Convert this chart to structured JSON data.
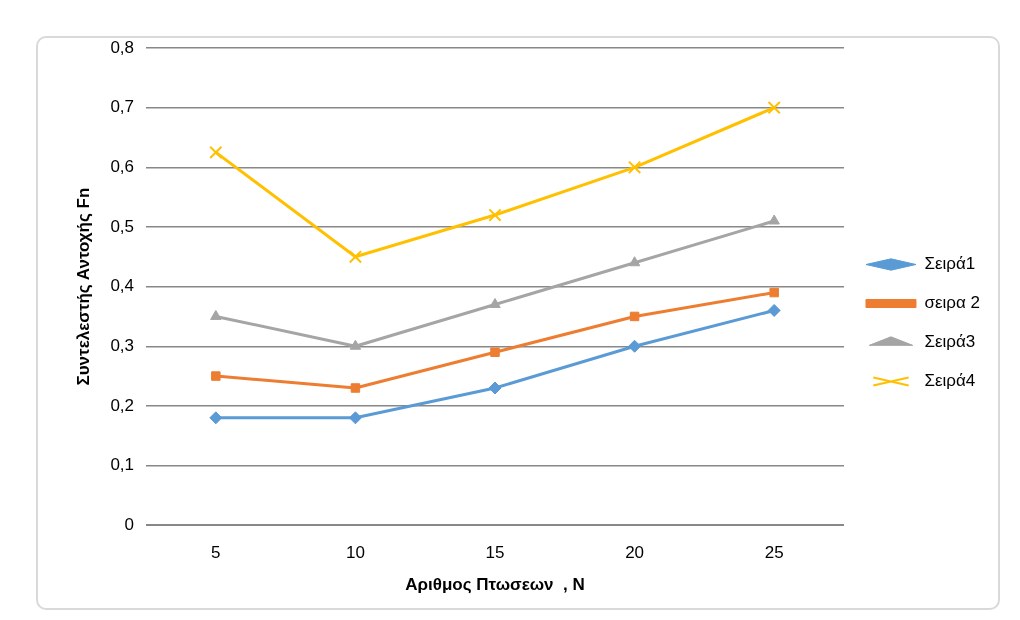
{
  "chart_data": {
    "type": "line",
    "xlabel": "Αριθμος Πτωσεων  , N",
    "ylabel": "Συντελεστής Αντοχής Fn",
    "categories": [
      "5",
      "10",
      "15",
      "20",
      "25"
    ],
    "series": [
      {
        "name": "Σειρά1",
        "color": "#5b9bd5",
        "marker": "diamond",
        "values": [
          0.18,
          0.18,
          0.23,
          0.3,
          0.36
        ]
      },
      {
        "name": "σειρα 2",
        "color": "#ed7d31",
        "marker": "square",
        "values": [
          0.25,
          0.23,
          0.29,
          0.35,
          0.39
        ]
      },
      {
        "name": "Σειρά3",
        "color": "#a5a5a5",
        "marker": "triangle",
        "values": [
          0.35,
          0.3,
          0.37,
          0.44,
          0.51
        ]
      },
      {
        "name": "Σειρά4",
        "color": "#ffc000",
        "marker": "cross",
        "values": [
          0.625,
          0.45,
          0.52,
          0.6,
          0.7
        ]
      }
    ],
    "ylim": [
      0,
      0.8
    ],
    "yticks": [
      0,
      {
        "value": 0.1,
        "label": "0,1"
      },
      {
        "value": 0.2,
        "label": "0,2"
      },
      {
        "value": 0.3,
        "label": "0,3"
      },
      {
        "value": 0.4,
        "label": "0,4"
      },
      {
        "value": 0.5,
        "label": "0,5"
      },
      {
        "value": 0.6,
        "label": "0,6"
      },
      {
        "value": 0.7,
        "label": "0,7"
      },
      {
        "value": 0.8,
        "label": "0,8"
      }
    ],
    "grid": "y",
    "legend": "right",
    "line_style": "solid"
  }
}
